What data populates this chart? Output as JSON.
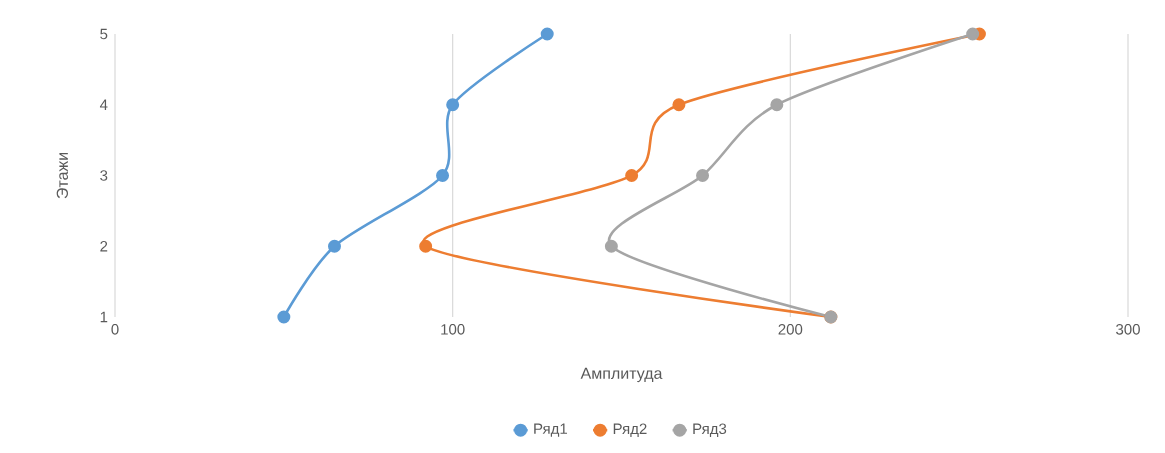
{
  "chart_data": {
    "type": "line",
    "xlabel": "Амплитуда",
    "ylabel": "Этажи",
    "series": [
      {
        "name": "Ряд1",
        "color": "#5b9bd5",
        "x": [
          50,
          65,
          97,
          100,
          128
        ],
        "values": [
          1,
          2,
          3,
          4,
          5
        ]
      },
      {
        "name": "Ряд2",
        "color": "#ed7d31",
        "x": [
          212,
          92,
          153,
          167,
          256
        ],
        "values": [
          1,
          2,
          3,
          4,
          5
        ]
      },
      {
        "name": "Ряд3",
        "color": "#a5a5a5",
        "x": [
          212,
          147,
          174,
          196,
          254
        ],
        "values": [
          1,
          2,
          3,
          4,
          5
        ]
      }
    ],
    "xlim": [
      0,
      300
    ],
    "xticks": [
      0,
      100,
      200,
      300
    ],
    "ylim": [
      1,
      5
    ],
    "yticks": [
      1,
      2,
      3,
      4,
      5
    ],
    "grid": "x",
    "legend": "bottom",
    "marker": "circle"
  }
}
